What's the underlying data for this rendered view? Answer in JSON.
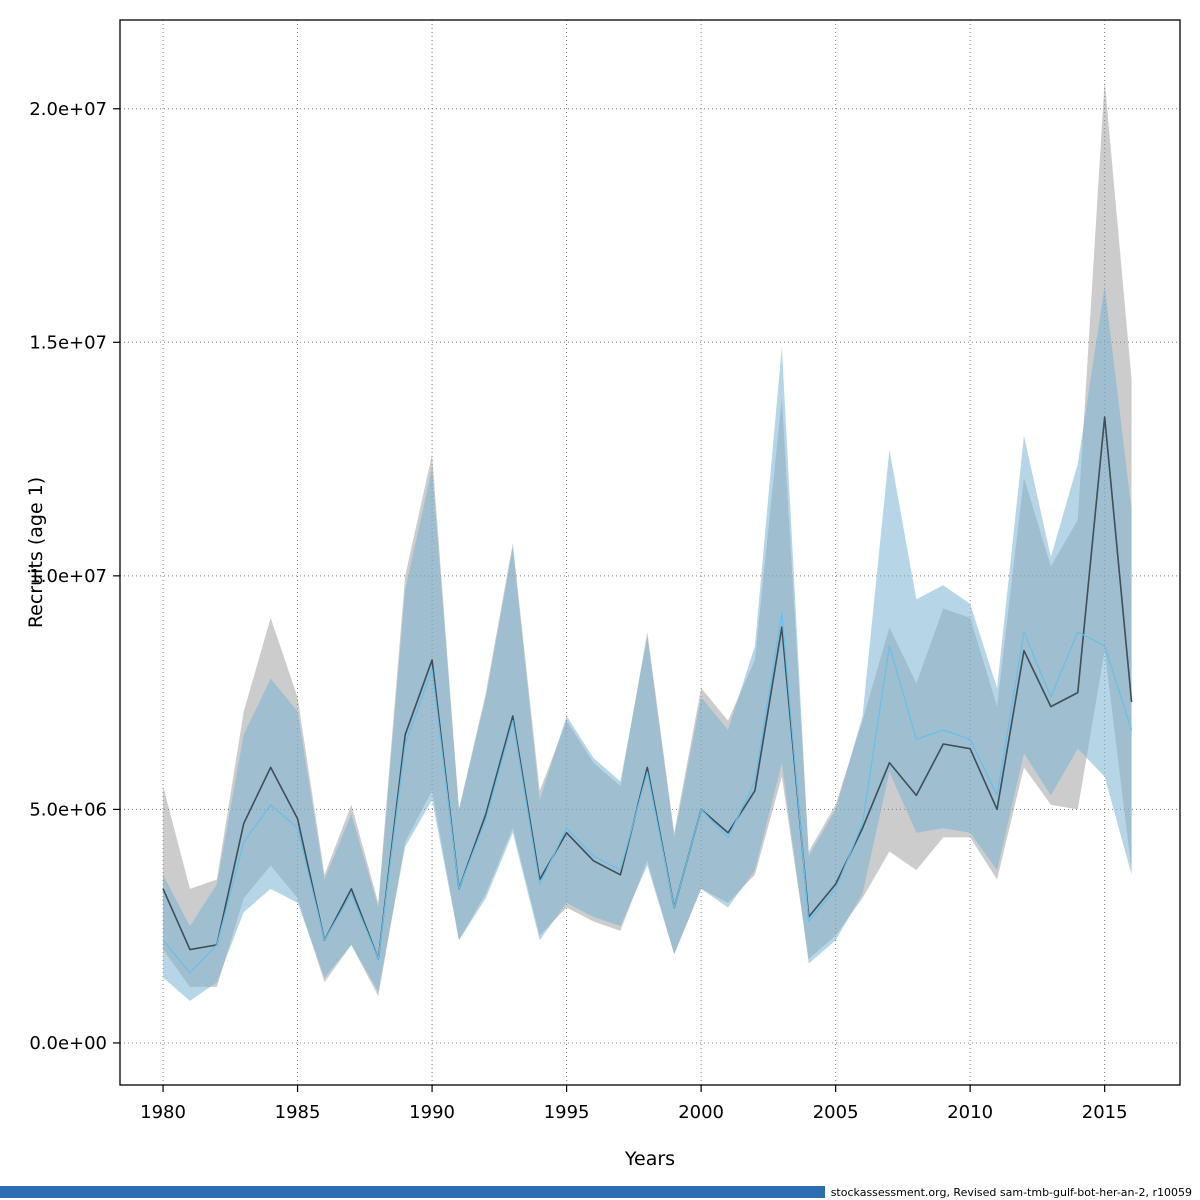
{
  "footer": {
    "text": "stockassessment.org, Revised sam-tmb-gulf-bot-her-an-2, r10059",
    "bar_color": "#2e6db4"
  },
  "chart_data": {
    "type": "line",
    "title": "",
    "xlabel": "Years",
    "ylabel": "Recruits (age 1)",
    "grid": "dotted",
    "legend": "none",
    "xlim": [
      1978.4,
      2017.8
    ],
    "ylim": [
      -900000,
      21900000
    ],
    "x_ticks": [
      1980,
      1985,
      1990,
      1995,
      2000,
      2005,
      2010,
      2015
    ],
    "y_ticks": [
      0,
      5000000,
      10000000,
      15000000,
      20000000
    ],
    "y_tick_labels": [
      "0.0e+00",
      "5.0e+06",
      "1.0e+07",
      "1.5e+07",
      "2.0e+07"
    ],
    "years": [
      1980,
      1981,
      1982,
      1983,
      1984,
      1985,
      1986,
      1987,
      1988,
      1989,
      1990,
      1991,
      1992,
      1993,
      1994,
      1995,
      1996,
      1997,
      1998,
      1999,
      2000,
      2001,
      2002,
      2003,
      2004,
      2005,
      2006,
      2007,
      2008,
      2009,
      2010,
      2011,
      2012,
      2013,
      2014,
      2015,
      2016
    ],
    "series": [
      {
        "name": "revised-run-gray",
        "line_color": "#3f4e58",
        "line_width": 1.6,
        "band_color": "#8f8f8f",
        "band_opacity": 0.45,
        "values": [
          3300000,
          2000000,
          2100000,
          4700000,
          5900000,
          4800000,
          2200000,
          3300000,
          1800000,
          6600000,
          8200000,
          3300000,
          4900000,
          7000000,
          3500000,
          4500000,
          3900000,
          3600000,
          5900000,
          2900000,
          5000000,
          4500000,
          5400000,
          8900000,
          2700000,
          3400000,
          4600000,
          6000000,
          5300000,
          6400000,
          6300000,
          5000000,
          8400000,
          7200000,
          7500000,
          13400000,
          7300000
        ],
        "lower": [
          2000000,
          1200000,
          1200000,
          3100000,
          3800000,
          3100000,
          1300000,
          2100000,
          1000000,
          4300000,
          5400000,
          2200000,
          3200000,
          4600000,
          2300000,
          2900000,
          2600000,
          2400000,
          3900000,
          1900000,
          3300000,
          3000000,
          3600000,
          5700000,
          1800000,
          2300000,
          3100000,
          4100000,
          3700000,
          4400000,
          4400000,
          3500000,
          5900000,
          5100000,
          5000000,
          8400000,
          3700000
        ],
        "upper": [
          5500000,
          3300000,
          3500000,
          7100000,
          9100000,
          7400000,
          3600000,
          5100000,
          3000000,
          10000000,
          12600000,
          5000000,
          7500000,
          10700000,
          5400000,
          6900000,
          6000000,
          5500000,
          8800000,
          4500000,
          7600000,
          6900000,
          8200000,
          13800000,
          4100000,
          5100000,
          6900000,
          8900000,
          7700000,
          9300000,
          9100000,
          7200000,
          12100000,
          10200000,
          11200000,
          20600000,
          14200000
        ]
      },
      {
        "name": "base-run-blue",
        "line_color": "#63c1ec",
        "line_width": 1.2,
        "band_color": "#7ab3d4",
        "band_opacity": 0.55,
        "values": [
          2200000,
          1500000,
          2100000,
          4300000,
          5100000,
          4600000,
          2200000,
          3200000,
          1800000,
          6400000,
          8000000,
          3300000,
          4800000,
          6900000,
          3400000,
          4600000,
          4000000,
          3700000,
          5800000,
          2900000,
          5000000,
          4400000,
          5600000,
          9200000,
          2600000,
          3300000,
          4700000,
          8500000,
          6500000,
          6700000,
          6500000,
          5300000,
          8800000,
          7400000,
          8800000,
          8500000,
          6700000
        ],
        "lower": [
          1400000,
          900000,
          1300000,
          2800000,
          3300000,
          3000000,
          1400000,
          2100000,
          1100000,
          4200000,
          5200000,
          2200000,
          3100000,
          4500000,
          2200000,
          3000000,
          2700000,
          2500000,
          3800000,
          1900000,
          3300000,
          2900000,
          3700000,
          6000000,
          1700000,
          2200000,
          3200000,
          5800000,
          4500000,
          4600000,
          4500000,
          3700000,
          6200000,
          5300000,
          6300000,
          5700000,
          3600000
        ],
        "upper": [
          3600000,
          2500000,
          3400000,
          6600000,
          7800000,
          7100000,
          3500000,
          4900000,
          2900000,
          9700000,
          12300000,
          5000000,
          7400000,
          10600000,
          5200000,
          7000000,
          6100000,
          5600000,
          8700000,
          4400000,
          7400000,
          6700000,
          8500000,
          14900000,
          4000000,
          5000000,
          7000000,
          12700000,
          9500000,
          9800000,
          9400000,
          7600000,
          13000000,
          10400000,
          12400000,
          16200000,
          11400000
        ]
      }
    ]
  }
}
